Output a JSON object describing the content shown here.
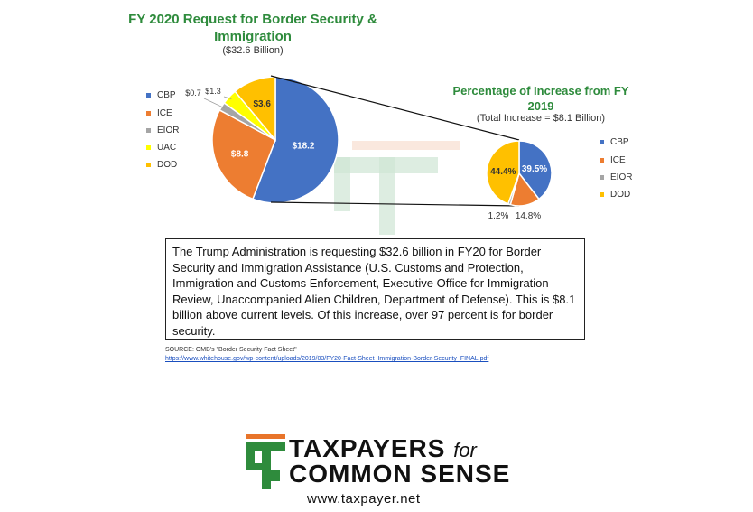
{
  "chart_data": [
    {
      "type": "pie",
      "title": "FY 2020 Request for Border Security & Immigration",
      "subtitle": "($32.6 Billion)",
      "categories": [
        "CBP",
        "ICE",
        "EIOR",
        "UAC",
        "DOD"
      ],
      "values": [
        18.2,
        8.8,
        0.7,
        1.3,
        3.6
      ],
      "data_labels": [
        "$18.2",
        "$8.8",
        "$0.7",
        "$1.3",
        "$3.6"
      ],
      "colors": [
        "#4472c4",
        "#ed7d31",
        "#a5a5a5",
        "#ffff00",
        "#ffc000"
      ],
      "legend_placement": "left"
    },
    {
      "type": "pie",
      "title": "Percentage of Increase from FY 2019",
      "subtitle": "(Total Increase = $8.1 Billion)",
      "categories": [
        "CBP",
        "ICE",
        "EIOR",
        "DOD"
      ],
      "values": [
        39.5,
        14.8,
        1.2,
        44.4
      ],
      "data_labels": [
        "39.5%",
        "14.8%",
        "1.2%",
        "44.4%"
      ],
      "colors": [
        "#4472c4",
        "#ed7d31",
        "#a5a5a5",
        "#ffc000"
      ],
      "legend_placement": "right"
    }
  ],
  "description_text": "The Trump Administration is requesting $32.6 billion in FY20 for Border Security and Immigration Assistance (U.S. Customs and Protection, Immigration and Customs Enforcement, Executive Office for Immigration Review, Unaccompanied Alien Children, Department of Defense). This is $8.1 billion above current levels. Of this increase, over 97 percent is for border security.",
  "source": {
    "label": "SOURCE: OMB's \"Border Security Fact Sheet\"",
    "link": "https://www.whitehouse.gov/wp-content/uploads/2019/03/FY20-Fact-Sheet_Immigration-Border-Security_FINAL.pdf"
  },
  "branding": {
    "line1_main": "TAXPAYERS",
    "line1_for": "for",
    "line2": "COMMON SENSE",
    "url": "www.taxpayer.net",
    "logo_icon": "tcs-logo-icon",
    "brand_green": "#2e8b3c",
    "brand_orange": "#e8742a"
  }
}
